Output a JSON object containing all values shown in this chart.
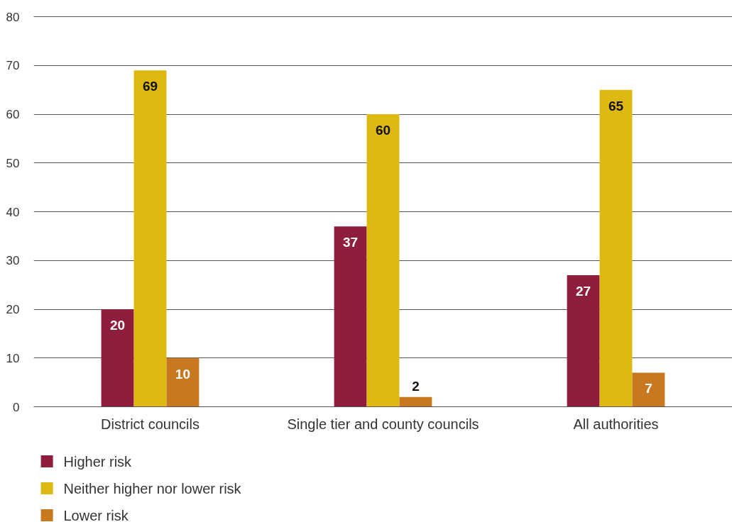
{
  "chart_data": {
    "type": "bar",
    "categories": [
      "District councils",
      "Single tier and county councils",
      "All authorities"
    ],
    "series": [
      {
        "name": "Higher risk",
        "color": "#8f1e3c",
        "values": [
          20,
          37,
          27
        ]
      },
      {
        "name": "Neither higher nor lower risk",
        "color": "#dfb913",
        "values": [
          69,
          60,
          65
        ]
      },
      {
        "name": "Lower risk",
        "color": "#c8781e",
        "values": [
          10,
          2,
          7
        ]
      }
    ],
    "ylim": [
      0,
      80
    ],
    "yticks": [
      0,
      10,
      20,
      30,
      40,
      50,
      60,
      70,
      80
    ],
    "grid": "y",
    "legend": "bottom left",
    "data_labels": true
  }
}
